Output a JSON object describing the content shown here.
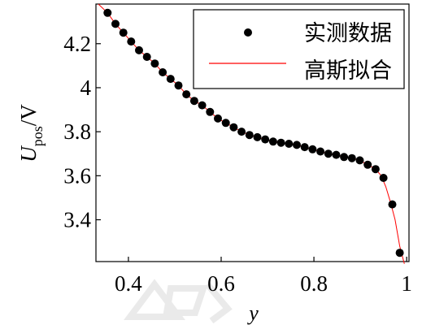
{
  "chart_data": {
    "type": "scatter",
    "xlabel": "y",
    "ylabel_main": "U",
    "ylabel_sub": "pos",
    "ylabel_unit": "/V",
    "xlim": [
      0.33,
      1.005
    ],
    "ylim": [
      3.21,
      4.38
    ],
    "xticks": [
      0.4,
      0.6,
      0.8,
      1
    ],
    "xtick_labels": [
      "0.4",
      "0.6",
      "0.8",
      "1"
    ],
    "yticks": [
      3.4,
      3.6,
      3.8,
      4.0,
      4.2
    ],
    "ytick_labels": [
      "3.4",
      "3.6",
      "3.8",
      "4",
      "4.2"
    ],
    "grid": false,
    "legend_position": "top-right",
    "legend": [
      {
        "label": "实测数据",
        "marker": "dot",
        "color": "#000000"
      },
      {
        "label": "高斯拟合",
        "marker": "line",
        "color": "#ff0000"
      }
    ],
    "series": [
      {
        "name": "实测数据",
        "kind": "scatter",
        "color": "#000000",
        "x": [
          0.355,
          0.372,
          0.389,
          0.406,
          0.423,
          0.44,
          0.457,
          0.474,
          0.491,
          0.508,
          0.525,
          0.542,
          0.559,
          0.576,
          0.593,
          0.61,
          0.627,
          0.644,
          0.661,
          0.678,
          0.695,
          0.712,
          0.729,
          0.746,
          0.763,
          0.78,
          0.797,
          0.814,
          0.831,
          0.848,
          0.865,
          0.882,
          0.899,
          0.916,
          0.933,
          0.95,
          0.969,
          0.985
        ],
        "y": [
          4.34,
          4.29,
          4.25,
          4.21,
          4.17,
          4.14,
          4.11,
          4.07,
          4.04,
          4.01,
          3.97,
          3.94,
          3.92,
          3.89,
          3.86,
          3.84,
          3.82,
          3.8,
          3.785,
          3.775,
          3.765,
          3.755,
          3.75,
          3.745,
          3.74,
          3.73,
          3.72,
          3.71,
          3.7,
          3.695,
          3.685,
          3.68,
          3.67,
          3.65,
          3.63,
          3.59,
          3.47,
          3.25
        ]
      },
      {
        "name": "高斯拟合",
        "kind": "line",
        "color": "#ff0000",
        "x": [
          0.335,
          0.355,
          0.372,
          0.389,
          0.406,
          0.423,
          0.44,
          0.457,
          0.474,
          0.491,
          0.508,
          0.525,
          0.542,
          0.559,
          0.576,
          0.593,
          0.61,
          0.627,
          0.644,
          0.661,
          0.678,
          0.695,
          0.712,
          0.729,
          0.746,
          0.763,
          0.78,
          0.797,
          0.814,
          0.831,
          0.848,
          0.865,
          0.882,
          0.899,
          0.916,
          0.933,
          0.945,
          0.955,
          0.965,
          0.975,
          0.985,
          0.995
        ],
        "y": [
          4.38,
          4.34,
          4.29,
          4.25,
          4.21,
          4.17,
          4.14,
          4.11,
          4.07,
          4.04,
          4.01,
          3.97,
          3.94,
          3.92,
          3.89,
          3.86,
          3.84,
          3.82,
          3.8,
          3.785,
          3.775,
          3.765,
          3.755,
          3.75,
          3.745,
          3.74,
          3.73,
          3.72,
          3.71,
          3.7,
          3.695,
          3.685,
          3.68,
          3.67,
          3.65,
          3.63,
          3.6,
          3.55,
          3.48,
          3.4,
          3.28,
          3.2
        ]
      }
    ]
  }
}
